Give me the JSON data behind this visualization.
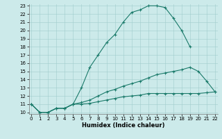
{
  "xlabel": "Humidex (Indice chaleur)",
  "line1_x": [
    0,
    1,
    2,
    3,
    4,
    5,
    6,
    7,
    8,
    9,
    10,
    11,
    12,
    13,
    14,
    15,
    16,
    17,
    18,
    19
  ],
  "line1_y": [
    11,
    10,
    10,
    10.5,
    10.5,
    11,
    13,
    15.5,
    17,
    18.5,
    19.5,
    21,
    22.2,
    22.5,
    23.0,
    23.0,
    22.8,
    21.5,
    20.0,
    18.0
  ],
  "line2_x": [
    0,
    1,
    2,
    3,
    4,
    5,
    6,
    7,
    8,
    9,
    10,
    11,
    12,
    13,
    14,
    15,
    16,
    17,
    18,
    19,
    20,
    21,
    22
  ],
  "line2_y": [
    11,
    10,
    10,
    10.5,
    10.5,
    11,
    11.2,
    11.5,
    12.0,
    12.5,
    12.8,
    13.2,
    13.5,
    13.8,
    14.2,
    14.6,
    14.8,
    15.0,
    15.2,
    15.5,
    15.0,
    13.8,
    12.5
  ],
  "line3_x": [
    0,
    1,
    2,
    3,
    4,
    5,
    6,
    7,
    8,
    9,
    10,
    11,
    12,
    13,
    14,
    15,
    16,
    17,
    18,
    19,
    20,
    21,
    22
  ],
  "line3_y": [
    11,
    10,
    10,
    10.5,
    10.5,
    11,
    11.0,
    11.1,
    11.3,
    11.5,
    11.7,
    11.9,
    12.0,
    12.1,
    12.3,
    12.3,
    12.3,
    12.3,
    12.3,
    12.3,
    12.3,
    12.4,
    12.5
  ],
  "ylim_min": 10,
  "ylim_max": 23,
  "xlim_min": 0,
  "xlim_max": 22,
  "yticks": [
    10,
    11,
    12,
    13,
    14,
    15,
    16,
    17,
    18,
    19,
    20,
    21,
    22,
    23
  ],
  "xticks": [
    0,
    1,
    2,
    3,
    4,
    5,
    6,
    7,
    8,
    9,
    10,
    11,
    12,
    13,
    14,
    15,
    16,
    17,
    18,
    19,
    20,
    21,
    22
  ],
  "line_color": "#1a7a6a",
  "bg_color": "#cceaea",
  "grid_color": "#a0cccc",
  "tick_fontsize": 5,
  "xlabel_fontsize": 6
}
